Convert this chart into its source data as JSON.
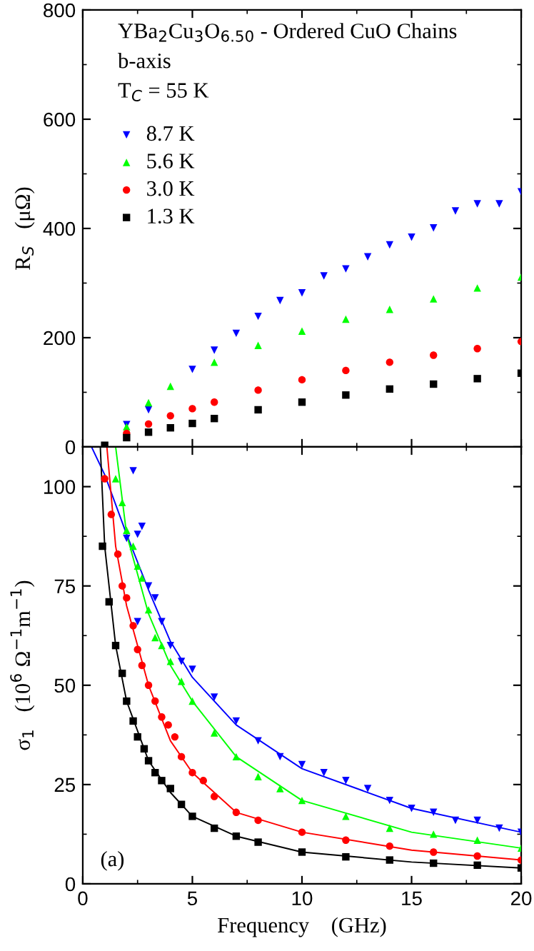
{
  "chart_data": [
    {
      "type": "scatter",
      "ylabel": "R$_{S}$   (μΩ)",
      "annotations": [
        "YBa$_{2}$Cu$_{3}$O$_{6.50}$ - Ordered CuO Chains",
        "b-axis",
        "T$_{C}$ = 55 K"
      ],
      "xlim": [
        0,
        20
      ],
      "xticks": [
        0,
        5,
        10,
        15,
        20
      ],
      "ylim": [
        0,
        800
      ],
      "yticks": [
        0,
        200,
        400,
        600,
        800
      ],
      "tick_labels": "y",
      "legend": "top left",
      "grid": false,
      "series": [
        {
          "name": "8.7 K",
          "color": "#0000ff",
          "marker": "triangle_down",
          "x": [
            2,
            3,
            5,
            6,
            7,
            8,
            9,
            10,
            11,
            12,
            13,
            14,
            15,
            16,
            17,
            18,
            19,
            20
          ],
          "values": [
            41,
            68,
            142,
            177,
            208,
            239,
            268,
            282,
            313,
            326,
            348,
            370,
            384,
            401,
            432,
            445,
            445,
            467
          ]
        },
        {
          "name": "5.6 K",
          "color": "#00ff00",
          "marker": "triangle",
          "x": [
            2,
            3,
            4,
            6,
            8,
            10,
            12,
            14,
            16,
            18,
            20
          ],
          "values": [
            37,
            81,
            111,
            155,
            186,
            212,
            234,
            252,
            271,
            291,
            311
          ]
        },
        {
          "name": "3.0 K",
          "color": "#ff0000",
          "marker": "circle",
          "x": [
            2,
            3,
            4,
            5,
            6,
            8,
            10,
            12,
            14,
            16,
            18,
            20
          ],
          "values": [
            25,
            42,
            57,
            70,
            82,
            104,
            123,
            140,
            155,
            168,
            180,
            193
          ]
        },
        {
          "name": "1.3 K",
          "color": "#000000",
          "marker": "square",
          "x": [
            1,
            2,
            3,
            4,
            5,
            6,
            8,
            10,
            12,
            14,
            16,
            18,
            20
          ],
          "values": [
            3,
            17,
            27,
            35,
            43,
            52,
            68,
            82,
            95,
            106,
            115,
            125,
            135
          ]
        }
      ]
    },
    {
      "type": "scatter",
      "xlabel": "Frequency    (GHz)",
      "ylabel": "σ$_{1}$   (10$^{6}$ Ω$^{−1}$m$^{−1}$)",
      "annotations": [
        "(a)"
      ],
      "xlim": [
        0,
        20
      ],
      "xticks": [
        0,
        5,
        10,
        15,
        20
      ],
      "ylim": [
        0,
        110
      ],
      "yticks": [
        0,
        25,
        50,
        75,
        100
      ],
      "legend": false,
      "grid": false,
      "series": [
        {
          "color": "#0000ff",
          "marker": "triangle_down",
          "x": [
            2.0,
            2.3,
            2.5,
            2.5,
            2.7,
            3,
            3.3,
            3.6,
            4,
            4.5,
            5,
            6,
            7,
            8,
            9,
            10,
            11,
            12,
            13,
            14,
            15,
            16,
            17,
            18,
            19,
            20
          ],
          "values": [
            87,
            104,
            88,
            66,
            90,
            75,
            72,
            66,
            60,
            56,
            54,
            47,
            41,
            36,
            32,
            30,
            28,
            26,
            24,
            21,
            19,
            18,
            16,
            16,
            14,
            13
          ]
        },
        {
          "color": "#00ff00",
          "marker": "triangle",
          "x": [
            1.5,
            1.8,
            2,
            2.3,
            2.5,
            2.7,
            3,
            3.3,
            3.6,
            4,
            4.5,
            5,
            6,
            7,
            8,
            9,
            10,
            12,
            14,
            16,
            18,
            20
          ],
          "values": [
            102,
            96,
            89,
            85,
            80,
            77,
            69,
            62,
            60,
            56,
            51,
            46,
            38,
            32,
            27,
            24,
            21,
            17,
            14,
            12.5,
            11,
            9
          ]
        },
        {
          "color": "#ff0000",
          "marker": "circle",
          "x": [
            1,
            1.3,
            1.6,
            1.8,
            2,
            2.3,
            2.5,
            2.7,
            3,
            3.3,
            3.6,
            3.9,
            4.2,
            4.5,
            5,
            5.5,
            6,
            7,
            8,
            10,
            12,
            14,
            16,
            18,
            20
          ],
          "values": [
            102,
            93,
            83,
            75,
            72,
            65,
            59,
            55,
            50,
            46,
            42,
            40,
            37,
            32,
            28,
            26,
            22,
            18,
            16,
            13,
            11,
            9.5,
            8,
            7,
            6
          ]
        },
        {
          "color": "#000000",
          "marker": "square",
          "x": [
            0.9,
            1.2,
            1.5,
            1.8,
            2,
            2.3,
            2.5,
            2.8,
            3,
            3.3,
            3.6,
            4,
            4.5,
            5,
            6,
            7,
            8,
            10,
            12,
            14,
            16,
            18,
            20
          ],
          "values": [
            85,
            71,
            60,
            53,
            46,
            41,
            37,
            34,
            31,
            28,
            26,
            24,
            20,
            17,
            14,
            12,
            10.5,
            8,
            6.8,
            6,
            5.2,
            4.7,
            4
          ]
        },
        {
          "type": "line",
          "color": "#0000ff",
          "x": [
            0.4,
            1,
            2,
            3,
            4,
            5,
            7,
            10,
            15,
            20
          ],
          "values": [
            110,
            103,
            88,
            74,
            61,
            52,
            40,
            29,
            19,
            13
          ]
        },
        {
          "type": "line",
          "color": "#00ff00",
          "x": [
            1.5,
            2,
            3,
            4,
            5,
            7,
            10,
            15,
            20
          ],
          "values": [
            110,
            88,
            68,
            55,
            46,
            32,
            21,
            13,
            9
          ]
        },
        {
          "type": "line",
          "color": "#ff0000",
          "x": [
            1.1,
            1.5,
            2,
            3,
            4,
            5,
            7,
            10,
            15,
            20
          ],
          "values": [
            110,
            85,
            70,
            50,
            36,
            28,
            18,
            13,
            8.5,
            6
          ]
        },
        {
          "type": "line",
          "color": "#000000",
          "x": [
            0.8,
            1,
            1.5,
            2,
            3,
            4,
            5,
            7,
            10,
            15,
            20
          ],
          "values": [
            110,
            85,
            60,
            46,
            31,
            23,
            17,
            12,
            8,
            5.5,
            4
          ]
        }
      ]
    }
  ]
}
